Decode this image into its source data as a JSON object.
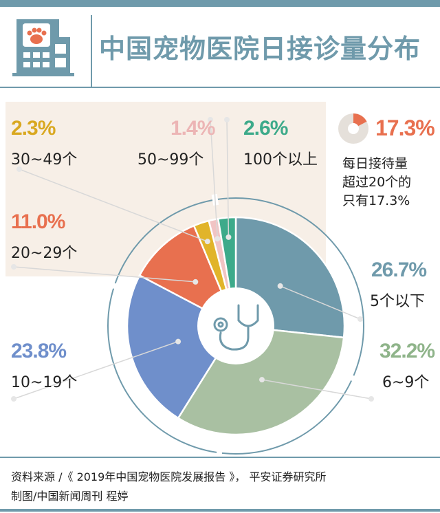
{
  "title": "中国宠物医院日接诊量分布",
  "chart_data": {
    "type": "pie",
    "title": "中国宠物医院日接诊量分布",
    "slices": [
      {
        "label": "5个以下",
        "value": 26.7,
        "pct_text": "26.7%",
        "color": "#6f9aab"
      },
      {
        "label": "6~9个",
        "value": 32.2,
        "pct_text": "32.2%",
        "color": "#a9c0a2"
      },
      {
        "label": "10~19个",
        "value": 23.8,
        "pct_text": "23.8%",
        "color": "#6f8fcb"
      },
      {
        "label": "20~29个",
        "value": 11.0,
        "pct_text": "11.0%",
        "color": "#e8704f"
      },
      {
        "label": "30~49个",
        "value": 2.3,
        "pct_text": "2.3%",
        "color": "#e1b42a"
      },
      {
        "label": "50~99个",
        "value": 1.4,
        "pct_text": "1.4%",
        "color": "#f1c4c4"
      },
      {
        "label": "100个以上",
        "value": 2.6,
        "pct_text": "2.6%",
        "color": "#3daa8a"
      }
    ],
    "highlight": {
      "value": 17.3,
      "pct_text": "17.3%",
      "color": "#e8704f"
    }
  },
  "note_lines": [
    "每日接待量",
    "超过20个的",
    "只有17.3%"
  ],
  "footer": {
    "line1": "资料来源 /《 2019年中国宠物医院发展报告 》， 平安证券研究所",
    "line2": "制图/中国新闻周刊 程婷"
  },
  "colors": {
    "accent": "#6f9aab",
    "beige": "#f7efe7"
  }
}
